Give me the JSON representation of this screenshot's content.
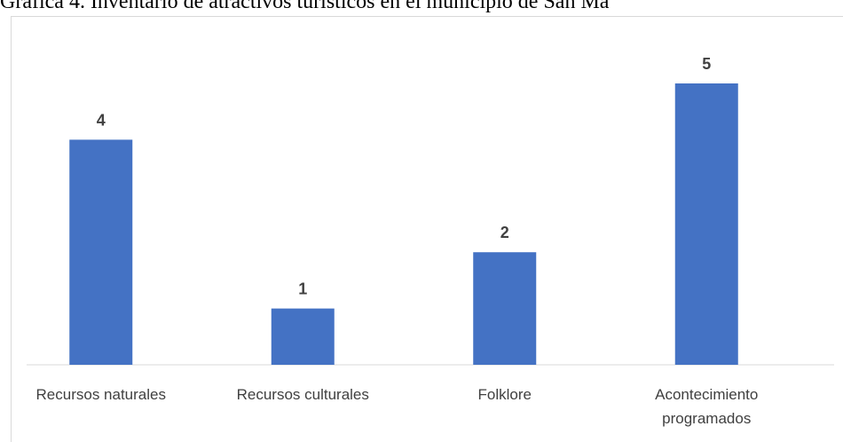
{
  "chart_data": {
    "type": "bar",
    "title": "Gráfica 4. Inventario de atractivos turísticos en el municipio de San Ma",
    "categories": [
      "Recursos naturales",
      "Recursos culturales",
      "Folklore",
      "Acontecimiento programados"
    ],
    "category_label_lines": [
      [
        "Recursos naturales"
      ],
      [
        "Recursos culturales"
      ],
      [
        "Folklore"
      ],
      [
        "Acontecimiento",
        "programados"
      ]
    ],
    "values": [
      4,
      1,
      2,
      5
    ],
    "data_labels": [
      "4",
      "1",
      "2",
      "5"
    ],
    "ylim": [
      0,
      5
    ],
    "grid": false,
    "legend": "none",
    "bar_color": "#4472c4",
    "axis_color": "#d9d9d9",
    "label_color": "#404040"
  }
}
